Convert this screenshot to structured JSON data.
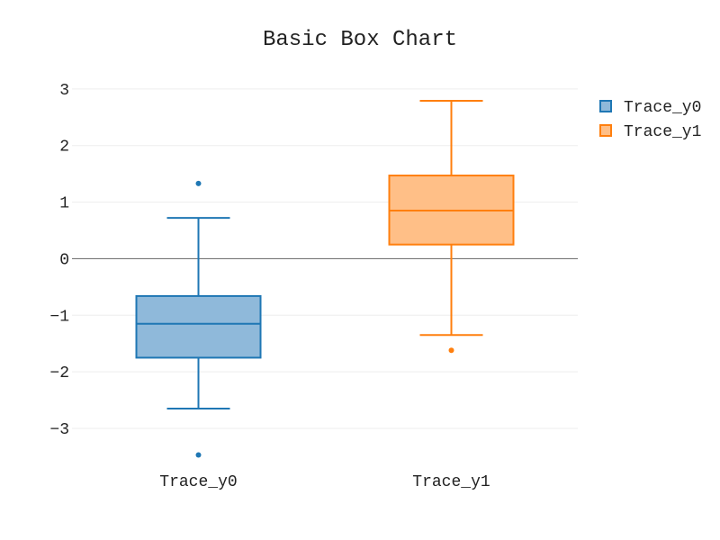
{
  "chart_data": {
    "type": "box",
    "title": "Basic Box Chart",
    "xlabel": "",
    "ylabel": "",
    "ylim": [
      -3.7,
      3.3
    ],
    "y_ticks": [
      -3,
      -2,
      -1,
      0,
      1,
      2,
      3
    ],
    "grid": true,
    "legend_position": "top-right",
    "categories": [
      "Trace_y0",
      "Trace_y1"
    ],
    "series": [
      {
        "name": "Trace_y0",
        "color": "#1f77b4",
        "fill": "#8fb9da",
        "min": -2.65,
        "q1": -1.75,
        "median": -1.15,
        "q3": -0.66,
        "max": 0.72,
        "outliers": [
          1.33,
          -3.47
        ]
      },
      {
        "name": "Trace_y1",
        "color": "#ff7f0e",
        "fill": "#ffbf87",
        "min": -1.35,
        "q1": 0.25,
        "median": 0.85,
        "q3": 1.47,
        "max": 2.79,
        "outliers": [
          -1.62
        ]
      }
    ]
  }
}
